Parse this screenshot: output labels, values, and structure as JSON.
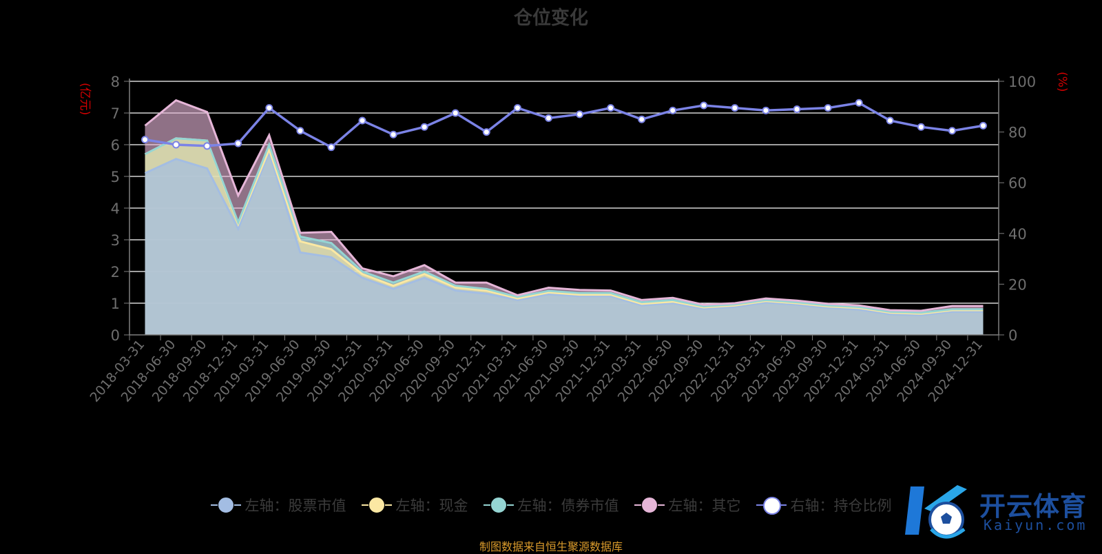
{
  "title": "仓位变化",
  "left_axis_unit": "(亿元)",
  "right_axis_unit": "(%)",
  "source_note": "制图数据来自恒生聚源数据库",
  "watermark": {
    "cn": "开云体育",
    "en": "Kaiyun.com"
  },
  "colors": {
    "stock": "#a3bde3",
    "cash": "#fbe8a3",
    "bond": "#95d5d3",
    "other": "#e6b6d8",
    "ratio": "#7b83e6",
    "grid": "#ffffff",
    "axis": "#808080",
    "unit": "#d40000",
    "source": "#d99a2b"
  },
  "legend": [
    {
      "label": "左轴：股票市值",
      "color": "#a3bde3",
      "icon": "circle-marker"
    },
    {
      "label": "左轴：现金",
      "color": "#fbe8a3",
      "icon": "circle-marker"
    },
    {
      "label": "左轴：债券市值",
      "color": "#95d5d3",
      "icon": "circle-marker"
    },
    {
      "label": "左轴：其它",
      "color": "#e6b6d8",
      "icon": "circle-marker"
    },
    {
      "label": "右轴：持仓比例",
      "color": "#7b83e6",
      "icon": "circle-marker"
    }
  ],
  "chart_data": {
    "type": "area",
    "stacked": true,
    "categories": [
      "2018-03-31",
      "2018-06-30",
      "2018-09-30",
      "2018-12-31",
      "2019-03-31",
      "2019-06-30",
      "2019-09-30",
      "2019-12-31",
      "2020-03-31",
      "2020-06-30",
      "2020-09-30",
      "2020-12-31",
      "2021-03-31",
      "2021-06-30",
      "2021-09-30",
      "2021-12-31",
      "2022-03-31",
      "2022-06-30",
      "2022-09-30",
      "2022-12-31",
      "2023-03-31",
      "2023-06-30",
      "2023-09-30",
      "2023-12-31",
      "2024-03-31",
      "2024-06-30",
      "2024-09-30",
      "2024-12-31"
    ],
    "left_axis": {
      "ylim": [
        0,
        8
      ],
      "ticks": [
        "0",
        "1",
        "2",
        "3",
        "4",
        "5",
        "6",
        "7",
        "8"
      ]
    },
    "right_axis": {
      "ylim": [
        0,
        100
      ],
      "ticks": [
        "0",
        "20",
        "40",
        "60",
        "80",
        "100"
      ]
    },
    "series": [
      {
        "name": "左轴：股票市值",
        "axis": "left",
        "values": [
          5.1,
          5.55,
          5.25,
          3.35,
          5.75,
          2.6,
          2.45,
          1.8,
          1.45,
          1.8,
          1.4,
          1.3,
          1.1,
          1.28,
          1.22,
          1.22,
          0.93,
          1.0,
          0.82,
          0.88,
          1.02,
          0.95,
          0.85,
          0.8,
          0.65,
          0.62,
          0.73,
          0.73
        ]
      },
      {
        "name": "左轴：现金",
        "axis": "left",
        "values": [
          0.6,
          0.65,
          0.88,
          0.15,
          0.1,
          0.35,
          0.25,
          0.12,
          0.1,
          0.12,
          0.1,
          0.1,
          0.05,
          0.06,
          0.05,
          0.05,
          0.05,
          0.05,
          0.05,
          0.05,
          0.05,
          0.05,
          0.05,
          0.05,
          0.05,
          0.05,
          0.05,
          0.05
        ]
      },
      {
        "name": "左轴：债券市值",
        "axis": "left",
        "values": [
          0,
          0,
          0,
          0.05,
          0.15,
          0.15,
          0.2,
          0.08,
          0.1,
          0.08,
          0.05,
          0.05,
          0.05,
          0.05,
          0.05,
          0.05,
          0.05,
          0.05,
          0.03,
          0.03,
          0.03,
          0.03,
          0.03,
          0.03,
          0.03,
          0.03,
          0.03,
          0.03
        ]
      },
      {
        "name": "左轴：其它",
        "axis": "left",
        "values": [
          0.9,
          1.2,
          0.9,
          0.85,
          0.3,
          0.12,
          0.35,
          0.1,
          0.2,
          0.2,
          0.1,
          0.2,
          0.05,
          0.1,
          0.1,
          0.08,
          0.07,
          0.07,
          0.05,
          0.04,
          0.05,
          0.05,
          0.05,
          0.05,
          0.05,
          0.06,
          0.1,
          0.1
        ]
      },
      {
        "name": "右轴：持仓比例",
        "axis": "right",
        "type": "line",
        "values": [
          77,
          75,
          74.5,
          75.5,
          89.5,
          80.5,
          74,
          84.5,
          79,
          82,
          87.5,
          80,
          89.5,
          85.5,
          87,
          89.5,
          85,
          88.5,
          90.5,
          89.5,
          88.5,
          89,
          89.5,
          91.5,
          84.5,
          82,
          80.5,
          82.5
        ]
      }
    ],
    "grid": true,
    "legend_position": "bottom"
  }
}
